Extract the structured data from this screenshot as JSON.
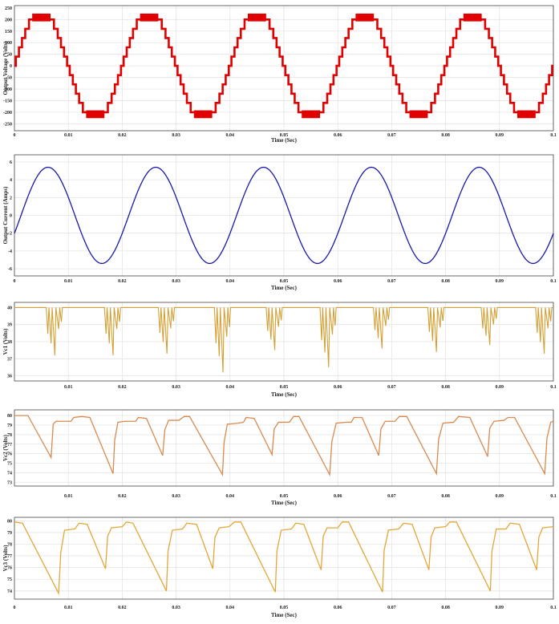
{
  "chart_data": [
    {
      "type": "line",
      "signal": "staircase",
      "xlabel": "Time (Sec)",
      "ylabel": "Output Voltage (Volts)",
      "xlim": [
        0,
        0.1
      ],
      "ylim": [
        -280,
        260
      ],
      "xticks": [
        "0",
        "0.01",
        "0.02",
        "0.03",
        "0.04",
        "0.05",
        "0.06",
        "0.07",
        "0.08",
        "0.09",
        "0.1"
      ],
      "yticks": [
        -250,
        -200,
        -150,
        -100,
        -50,
        0,
        50,
        100,
        150,
        200,
        250
      ],
      "frequency_hz": 50,
      "amplitude": 240,
      "levels": 11,
      "step_volts": 40,
      "color": "#e00000",
      "grid": true
    },
    {
      "type": "line",
      "signal": "sine",
      "xlabel": "Time (Sec)",
      "ylabel": "Output Current (Amps)",
      "xlim": [
        0,
        0.1
      ],
      "ylim": [
        -6.8,
        6.8
      ],
      "xticks": [
        "0",
        "0.01",
        "0.02",
        "0.03",
        "0.04",
        "0.05",
        "0.06",
        "0.07",
        "0.08",
        "0.09",
        "0.1"
      ],
      "yticks": [
        -6,
        -4,
        -2,
        0,
        2,
        4,
        6
      ],
      "frequency_hz": 50,
      "amplitude": 5.4,
      "phase_lag_deg": 22,
      "color": "#1a1aa6",
      "grid": true
    },
    {
      "type": "line",
      "signal": "dips",
      "xlabel": "Time (Sec)",
      "ylabel": "Vc1 (Volts)",
      "xlim": [
        0,
        0.1
      ],
      "ylim": [
        35.7,
        40.3
      ],
      "xticks": [
        "",
        "0.01",
        "0.02",
        "0.03",
        "0.04",
        "0.05",
        "0.06",
        "0.07",
        "0.08",
        "0.09",
        "0.1"
      ],
      "yticks": [
        36,
        37,
        38,
        39,
        40
      ],
      "baseline": 40,
      "dips": [
        {
          "t": 0.0075,
          "v": 37.2
        },
        {
          "t": 0.0183,
          "v": 37.2
        },
        {
          "t": 0.0283,
          "v": 37.3
        },
        {
          "t": 0.0387,
          "v": 36.2
        },
        {
          "t": 0.0483,
          "v": 37.5
        },
        {
          "t": 0.0583,
          "v": 36.5
        },
        {
          "t": 0.0682,
          "v": 37.6
        },
        {
          "t": 0.0783,
          "v": 37.4
        },
        {
          "t": 0.0882,
          "v": 37.8
        },
        {
          "t": 0.0983,
          "v": 37.3
        }
      ],
      "color": "#d4a035",
      "grid": true
    },
    {
      "type": "line",
      "signal": "sawtooth",
      "xlabel": "Time (Sec)",
      "ylabel": "Vc2 (Volts)",
      "xlim": [
        0,
        0.1
      ],
      "ylim": [
        72.6,
        80.6
      ],
      "xticks": [
        "",
        "0.01",
        "0.02",
        "0.03",
        "0.04",
        "0.05",
        "0.06",
        "0.07",
        "0.08",
        "0.09",
        "0.1"
      ],
      "yticks": [
        73,
        74,
        75,
        76,
        77,
        78,
        79,
        80
      ],
      "points": [
        [
          0.0,
          80.0
        ],
        [
          0.0025,
          80.0
        ],
        [
          0.0068,
          75.6
        ],
        [
          0.0072,
          79.1
        ],
        [
          0.0077,
          79.4
        ],
        [
          0.0105,
          79.4
        ],
        [
          0.011,
          79.8
        ],
        [
          0.0125,
          79.9
        ],
        [
          0.014,
          79.8
        ],
        [
          0.0183,
          73.9
        ],
        [
          0.0186,
          77.4
        ],
        [
          0.0192,
          79.3
        ],
        [
          0.0205,
          79.4
        ],
        [
          0.0225,
          79.4
        ],
        [
          0.023,
          79.8
        ],
        [
          0.0245,
          79.7
        ],
        [
          0.0275,
          75.8
        ],
        [
          0.0279,
          78.5
        ],
        [
          0.0286,
          79.5
        ],
        [
          0.0305,
          79.5
        ],
        [
          0.0315,
          79.9
        ],
        [
          0.0325,
          79.9
        ],
        [
          0.0386,
          73.8
        ],
        [
          0.0389,
          77.2
        ],
        [
          0.0395,
          79.1
        ],
        [
          0.0415,
          79.2
        ],
        [
          0.0425,
          79.3
        ],
        [
          0.043,
          79.8
        ],
        [
          0.0445,
          79.7
        ],
        [
          0.0478,
          75.9
        ],
        [
          0.0482,
          78.6
        ],
        [
          0.049,
          79.3
        ],
        [
          0.051,
          79.3
        ],
        [
          0.0518,
          79.9
        ],
        [
          0.0528,
          79.9
        ],
        [
          0.0585,
          73.8
        ],
        [
          0.0589,
          77.3
        ],
        [
          0.0597,
          79.2
        ],
        [
          0.0616,
          79.3
        ],
        [
          0.0625,
          79.3
        ],
        [
          0.063,
          79.8
        ],
        [
          0.0645,
          79.8
        ],
        [
          0.0676,
          75.8
        ],
        [
          0.068,
          78.6
        ],
        [
          0.0688,
          79.4
        ],
        [
          0.0706,
          79.4
        ],
        [
          0.0714,
          79.9
        ],
        [
          0.0728,
          79.9
        ],
        [
          0.0783,
          73.9
        ],
        [
          0.0787,
          77.5
        ],
        [
          0.0795,
          79.2
        ],
        [
          0.0815,
          79.3
        ],
        [
          0.0824,
          79.9
        ],
        [
          0.0845,
          79.8
        ],
        [
          0.0878,
          75.7
        ],
        [
          0.0882,
          78.7
        ],
        [
          0.089,
          79.4
        ],
        [
          0.0908,
          79.5
        ],
        [
          0.0916,
          79.8
        ],
        [
          0.0928,
          79.8
        ],
        [
          0.0984,
          73.9
        ],
        [
          0.0988,
          77.6
        ],
        [
          0.0995,
          79.3
        ],
        [
          0.1,
          79.4
        ]
      ],
      "color": "#d88a4f",
      "grid": true
    },
    {
      "type": "line",
      "signal": "sawtooth",
      "xlabel": "Time (Sec)",
      "ylabel": "Vc3 (Volts)",
      "xlim": [
        0,
        0.1
      ],
      "ylim": [
        73.3,
        80.3
      ],
      "xticks": [
        "0",
        "0.01",
        "0.02",
        "0.03",
        "0.04",
        "0.05",
        "0.06",
        "0.07",
        "0.08",
        "0.09",
        "0.1"
      ],
      "yticks": [
        74,
        75,
        76,
        77,
        78,
        79,
        80
      ],
      "points": [
        [
          0.0,
          79.9
        ],
        [
          0.0015,
          79.8
        ],
        [
          0.0082,
          73.8
        ],
        [
          0.0086,
          77.3
        ],
        [
          0.0093,
          79.2
        ],
        [
          0.0112,
          79.3
        ],
        [
          0.012,
          79.8
        ],
        [
          0.0135,
          79.7
        ],
        [
          0.0169,
          75.9
        ],
        [
          0.0173,
          78.7
        ],
        [
          0.018,
          79.4
        ],
        [
          0.02,
          79.5
        ],
        [
          0.0208,
          79.9
        ],
        [
          0.022,
          79.8
        ],
        [
          0.0282,
          74.0
        ],
        [
          0.0285,
          77.4
        ],
        [
          0.0293,
          79.2
        ],
        [
          0.0312,
          79.3
        ],
        [
          0.032,
          79.8
        ],
        [
          0.0338,
          79.7
        ],
        [
          0.0368,
          75.9
        ],
        [
          0.0372,
          78.6
        ],
        [
          0.038,
          79.4
        ],
        [
          0.0398,
          79.5
        ],
        [
          0.0408,
          79.9
        ],
        [
          0.042,
          79.9
        ],
        [
          0.0484,
          73.9
        ],
        [
          0.0487,
          77.4
        ],
        [
          0.0495,
          79.2
        ],
        [
          0.0514,
          79.3
        ],
        [
          0.0522,
          79.8
        ],
        [
          0.0537,
          79.7
        ],
        [
          0.0569,
          75.8
        ],
        [
          0.0573,
          78.7
        ],
        [
          0.058,
          79.4
        ],
        [
          0.06,
          79.4
        ],
        [
          0.0608,
          79.9
        ],
        [
          0.062,
          79.9
        ],
        [
          0.0683,
          73.9
        ],
        [
          0.0686,
          77.5
        ],
        [
          0.0694,
          79.2
        ],
        [
          0.0713,
          79.3
        ],
        [
          0.0722,
          79.8
        ],
        [
          0.0738,
          79.7
        ],
        [
          0.0769,
          75.8
        ],
        [
          0.0773,
          78.6
        ],
        [
          0.078,
          79.4
        ],
        [
          0.08,
          79.5
        ],
        [
          0.0808,
          79.9
        ],
        [
          0.082,
          79.9
        ],
        [
          0.0883,
          74.0
        ],
        [
          0.0886,
          77.4
        ],
        [
          0.0894,
          79.3
        ],
        [
          0.0912,
          79.3
        ],
        [
          0.092,
          79.8
        ],
        [
          0.0937,
          79.7
        ],
        [
          0.0969,
          75.8
        ],
        [
          0.0973,
          78.6
        ],
        [
          0.098,
          79.4
        ],
        [
          0.1,
          79.5
        ]
      ],
      "color": "#e3a63a",
      "grid": true
    }
  ]
}
